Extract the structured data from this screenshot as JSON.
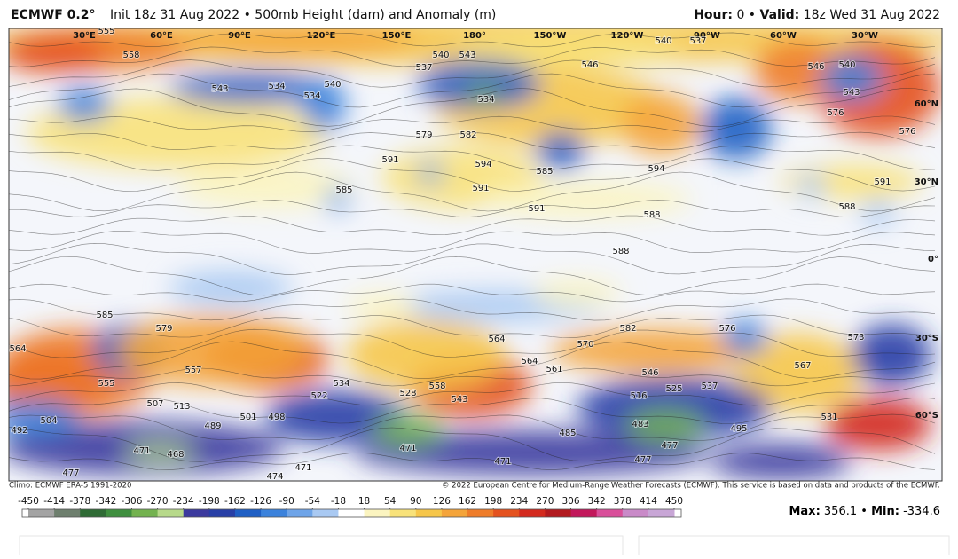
{
  "header": {
    "model": "ECMWF 0.2°",
    "description": "Init 18z 31 Aug 2022 • 500mb Height (dam) and Anomaly (m)",
    "hour_label": "Hour:",
    "hour": "0 •",
    "valid_label": "Valid:",
    "valid": "18z Wed 31 Aug 2022"
  },
  "map": {
    "longitudes": [
      "30°E",
      "60°E",
      "90°E",
      "120°E",
      "150°E",
      "180°",
      "150°W",
      "120°W",
      "90°W",
      "60°W",
      "30°W"
    ],
    "latitudes": [
      "60°N",
      "30°N",
      "0°",
      "30°S",
      "60°S"
    ],
    "contour_labels": [
      555,
      558,
      543,
      534,
      534,
      540,
      537,
      540,
      543,
      534,
      546,
      540,
      537,
      546,
      540,
      543,
      576,
      576,
      579,
      582,
      591,
      594,
      591,
      585,
      594,
      585,
      591,
      588,
      588,
      591,
      588,
      585,
      579,
      564,
      557,
      555,
      522,
      534,
      528,
      558,
      543,
      564,
      564,
      561,
      570,
      582,
      576,
      546,
      525,
      537,
      516,
      567,
      573,
      531,
      504,
      492,
      507,
      513,
      489,
      501,
      498,
      471,
      468,
      477,
      474,
      471,
      471,
      485,
      483,
      477,
      495,
      471,
      477
    ]
  },
  "footer": {
    "climo": "Climo: ECMWF ERA-5 1991-2020",
    "copyright": "© 2022 European Centre for Medium-Range Weather Forecasts (ECMWF). This service is based on data and products of the ECMWF."
  },
  "colorbar": {
    "ticks": [
      -450,
      -414,
      -378,
      -342,
      -306,
      -270,
      -234,
      -198,
      -162,
      -126,
      -90,
      -54,
      -18,
      18,
      54,
      90,
      126,
      162,
      198,
      234,
      270,
      306,
      342,
      378,
      414,
      450
    ],
    "colors": [
      "#a3a3a3",
      "#6e7f6e",
      "#2f6b35",
      "#3f8f3f",
      "#73b24f",
      "#b7d98a",
      "#3c3a9e",
      "#283fa6",
      "#1f5fc4",
      "#3b82dc",
      "#6ea4e8",
      "#a9c9f2",
      "#ffffff",
      "#fbf4c0",
      "#f8e27a",
      "#f6c64a",
      "#f4a43a",
      "#ee7c2a",
      "#e4521f",
      "#d32a1e",
      "#b21a1f",
      "#c2185b",
      "#d94f9a",
      "#c98ac8",
      "#c8a6d6"
    ]
  },
  "stats": {
    "max_label": "Max:",
    "max": "356.1 •",
    "min_label": "Min:",
    "min": -334.6
  }
}
